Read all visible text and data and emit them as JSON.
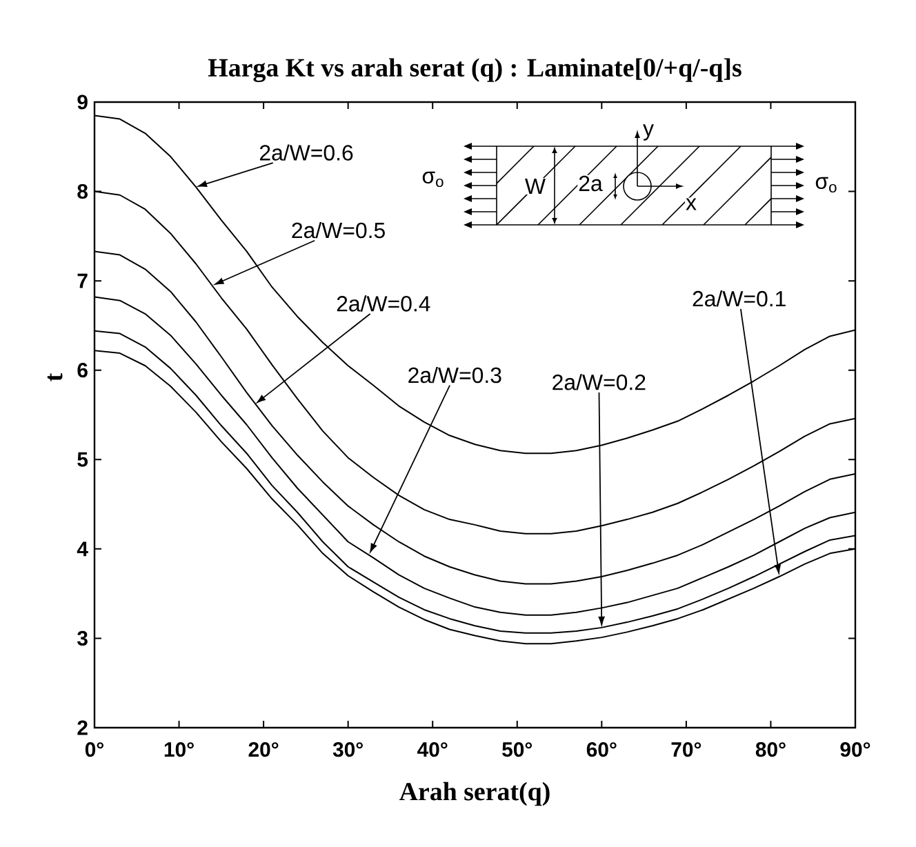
{
  "chart_data": {
    "type": "line",
    "title": "Harga Kt vs arah serat (q) : Laminate[0/+q/-q]s",
    "xlabel": "Arah serat(q)",
    "ylabel": "t",
    "x": [
      0,
      3,
      6,
      9,
      12,
      15,
      18,
      21,
      24,
      27,
      30,
      33,
      36,
      39,
      42,
      45,
      48,
      51,
      54,
      57,
      60,
      63,
      66,
      69,
      72,
      75,
      78,
      81,
      84,
      87,
      90
    ],
    "series": [
      {
        "color": "#000000",
        "values": [
          8.85,
          8.81,
          8.65,
          8.39,
          8.05,
          7.68,
          7.33,
          6.93,
          6.6,
          6.31,
          6.05,
          5.83,
          5.6,
          5.42,
          5.27,
          5.17,
          5.1,
          5.07,
          5.07,
          5.1,
          5.16,
          5.24,
          5.33,
          5.43,
          5.57,
          5.72,
          5.88,
          6.05,
          6.23,
          6.38,
          6.45
        ]
      },
      {
        "color": "#000000",
        "values": [
          8.0,
          7.96,
          7.8,
          7.53,
          7.19,
          6.81,
          6.46,
          6.06,
          5.68,
          5.32,
          5.02,
          4.8,
          4.6,
          4.44,
          4.33,
          4.27,
          4.2,
          4.17,
          4.17,
          4.2,
          4.26,
          4.33,
          4.41,
          4.51,
          4.64,
          4.78,
          4.93,
          5.09,
          5.26,
          5.4,
          5.46
        ]
      },
      {
        "color": "#000000",
        "values": [
          7.33,
          7.29,
          7.13,
          6.88,
          6.54,
          6.15,
          5.75,
          5.38,
          5.05,
          4.75,
          4.48,
          4.27,
          4.08,
          3.92,
          3.8,
          3.71,
          3.64,
          3.61,
          3.61,
          3.64,
          3.69,
          3.76,
          3.84,
          3.93,
          4.05,
          4.19,
          4.33,
          4.48,
          4.64,
          4.78,
          4.84
        ]
      },
      {
        "color": "#000000",
        "values": [
          6.82,
          6.78,
          6.63,
          6.39,
          6.07,
          5.72,
          5.39,
          5.02,
          4.68,
          4.38,
          4.08,
          3.9,
          3.71,
          3.56,
          3.45,
          3.35,
          3.29,
          3.26,
          3.26,
          3.29,
          3.34,
          3.4,
          3.48,
          3.56,
          3.68,
          3.8,
          3.93,
          4.08,
          4.23,
          4.35,
          4.41
        ]
      },
      {
        "color": "#000000",
        "values": [
          6.44,
          6.41,
          6.26,
          6.02,
          5.72,
          5.38,
          5.07,
          4.71,
          4.41,
          4.08,
          3.8,
          3.63,
          3.46,
          3.32,
          3.22,
          3.14,
          3.08,
          3.06,
          3.06,
          3.08,
          3.12,
          3.18,
          3.25,
          3.33,
          3.44,
          3.56,
          3.69,
          3.83,
          3.97,
          4.1,
          4.15
        ]
      },
      {
        "color": "#000000",
        "values": [
          6.22,
          6.19,
          6.05,
          5.82,
          5.53,
          5.2,
          4.9,
          4.56,
          4.27,
          3.95,
          3.7,
          3.52,
          3.35,
          3.21,
          3.1,
          3.03,
          2.97,
          2.94,
          2.94,
          2.97,
          3.01,
          3.07,
          3.14,
          3.22,
          3.32,
          3.44,
          3.56,
          3.69,
          3.83,
          3.95,
          4.0
        ]
      }
    ],
    "xlim": [
      0,
      90
    ],
    "ylim": [
      2,
      9
    ],
    "xticks": [
      {
        "value": 0,
        "label": "0°"
      },
      {
        "value": 10,
        "label": "10°"
      },
      {
        "value": 20,
        "label": "20°"
      },
      {
        "value": 30,
        "label": "30°"
      },
      {
        "value": 40,
        "label": "40°"
      },
      {
        "value": 50,
        "label": "50°"
      },
      {
        "value": 60,
        "label": "60°"
      },
      {
        "value": 70,
        "label": "70°"
      },
      {
        "value": 80,
        "label": "80°"
      },
      {
        "value": 90,
        "label": "90°"
      }
    ],
    "yticks": [
      2,
      3,
      4,
      5,
      6,
      7,
      8,
      9
    ],
    "annotations": [
      {
        "text": "2a/W=0.6",
        "x": 12,
        "y": 8.05
      },
      {
        "text": "2a/W=0.5",
        "x": 14,
        "y": 6.95
      },
      {
        "text": "2a/W=0.4",
        "x": 19,
        "y": 5.62
      },
      {
        "text": "2a/W=0.3",
        "x": 32.5,
        "y": 3.94
      },
      {
        "text": "2a/W=0.2",
        "x": 60,
        "y": 3.12
      },
      {
        "text": "2a/W=0.1",
        "x": 81,
        "y": 3.7
      },
      "σ$_{o}$",
      "σ$_{o}$",
      "W",
      "2a",
      "x",
      "y"
    ]
  }
}
